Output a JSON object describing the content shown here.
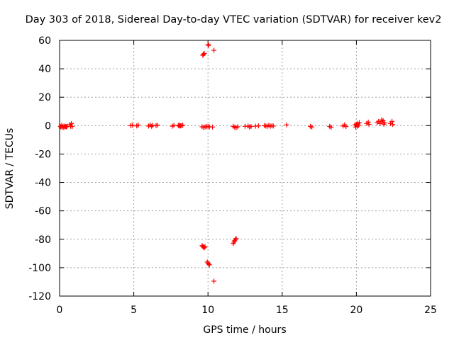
{
  "chart_data": {
    "type": "scatter",
    "title": "Day 303 of 2018, Sidereal Day-to-day VTEC variation (SDTVAR) for receiver kev2",
    "xlabel": "GPS time / hours",
    "ylabel": "SDTVAR / TECUs",
    "xlim": [
      0,
      25
    ],
    "ylim": [
      -120,
      60
    ],
    "xticks": [
      0,
      5,
      10,
      15,
      20,
      25
    ],
    "yticks": [
      -120,
      -100,
      -80,
      -60,
      -40,
      -20,
      0,
      20,
      40,
      60
    ],
    "grid": true,
    "marker": "+",
    "colors": {
      "points": "#ff0000",
      "grid": "#a0a0a0",
      "axis": "#000000"
    },
    "series": [
      {
        "name": "SDTVAR",
        "points": [
          [
            0.05,
            -0.5
          ],
          [
            0.1,
            -1
          ],
          [
            0.15,
            0.2
          ],
          [
            0.2,
            -0.8
          ],
          [
            0.25,
            -1.2
          ],
          [
            0.3,
            -0.3
          ],
          [
            0.35,
            -1
          ],
          [
            0.4,
            -0.6
          ],
          [
            0.45,
            -0.9
          ],
          [
            0.5,
            -0.4
          ],
          [
            0.7,
            0.8
          ],
          [
            0.75,
            -0.5
          ],
          [
            0.8,
            1.5
          ],
          [
            0.85,
            -0.7
          ],
          [
            4.8,
            0
          ],
          [
            4.9,
            0.3
          ],
          [
            5.2,
            -0.2
          ],
          [
            5.3,
            0.4
          ],
          [
            6.0,
            -0.3
          ],
          [
            6.1,
            0.5
          ],
          [
            6.2,
            -0.5
          ],
          [
            6.25,
            0.2
          ],
          [
            6.5,
            0
          ],
          [
            6.6,
            0.3
          ],
          [
            7.6,
            -0.4
          ],
          [
            7.7,
            0.2
          ],
          [
            8.0,
            0.1
          ],
          [
            8.05,
            -0.3
          ],
          [
            8.1,
            0.4
          ],
          [
            8.15,
            -0.2
          ],
          [
            8.2,
            0
          ],
          [
            8.3,
            0.3
          ],
          [
            9.6,
            -0.8
          ],
          [
            9.7,
            -1.2
          ],
          [
            9.8,
            -1
          ],
          [
            9.9,
            -0.6
          ],
          [
            10.0,
            -0.5
          ],
          [
            10.1,
            -0.9
          ],
          [
            10.3,
            -1
          ],
          [
            9.65,
            49.5
          ],
          [
            9.7,
            50.2
          ],
          [
            9.75,
            50.8
          ],
          [
            10.0,
            57
          ],
          [
            10.05,
            56.5
          ],
          [
            10.4,
            53
          ],
          [
            9.6,
            -84.5
          ],
          [
            9.65,
            -85
          ],
          [
            9.7,
            -85.5
          ],
          [
            9.75,
            -86
          ],
          [
            9.8,
            -85.2
          ],
          [
            9.95,
            -96
          ],
          [
            10.0,
            -96.8
          ],
          [
            10.05,
            -97.5
          ],
          [
            10.1,
            -98
          ],
          [
            10.4,
            -109.5
          ],
          [
            11.7,
            -83
          ],
          [
            11.75,
            -82
          ],
          [
            11.8,
            -81
          ],
          [
            11.85,
            -80
          ],
          [
            11.9,
            -79.5
          ],
          [
            11.7,
            -0.5
          ],
          [
            11.8,
            -1.2
          ],
          [
            11.9,
            -1.5
          ],
          [
            12.0,
            -0.8
          ],
          [
            12.5,
            -0.5
          ],
          [
            12.7,
            -0.3
          ],
          [
            12.8,
            -1
          ],
          [
            12.9,
            -0.6
          ],
          [
            13.2,
            -0.4
          ],
          [
            13.4,
            -0.2
          ],
          [
            13.8,
            0
          ],
          [
            13.9,
            -0.3
          ],
          [
            14.0,
            -0.5
          ],
          [
            14.1,
            0.2
          ],
          [
            14.2,
            -0.4
          ],
          [
            14.3,
            -0.1
          ],
          [
            14.4,
            -0.3
          ],
          [
            15.3,
            0.5
          ],
          [
            16.9,
            -0.5
          ],
          [
            17.0,
            -1
          ],
          [
            18.2,
            -0.5
          ],
          [
            18.3,
            -1.2
          ],
          [
            19.1,
            -0.3
          ],
          [
            19.2,
            0.5
          ],
          [
            19.3,
            -0.6
          ],
          [
            19.9,
            0.5
          ],
          [
            19.95,
            -1
          ],
          [
            20.0,
            1
          ],
          [
            20.05,
            -0.5
          ],
          [
            20.1,
            1.5
          ],
          [
            20.15,
            0.2
          ],
          [
            20.2,
            2
          ],
          [
            20.7,
            1.5
          ],
          [
            20.8,
            2.5
          ],
          [
            20.85,
            0.8
          ],
          [
            21.4,
            2
          ],
          [
            21.5,
            3
          ],
          [
            21.6,
            1.5
          ],
          [
            21.7,
            4
          ],
          [
            21.75,
            2.5
          ],
          [
            21.8,
            3.5
          ],
          [
            21.85,
            1
          ],
          [
            21.9,
            2
          ],
          [
            22.3,
            1.5
          ],
          [
            22.4,
            3
          ],
          [
            22.45,
            0.8
          ]
        ]
      }
    ]
  }
}
